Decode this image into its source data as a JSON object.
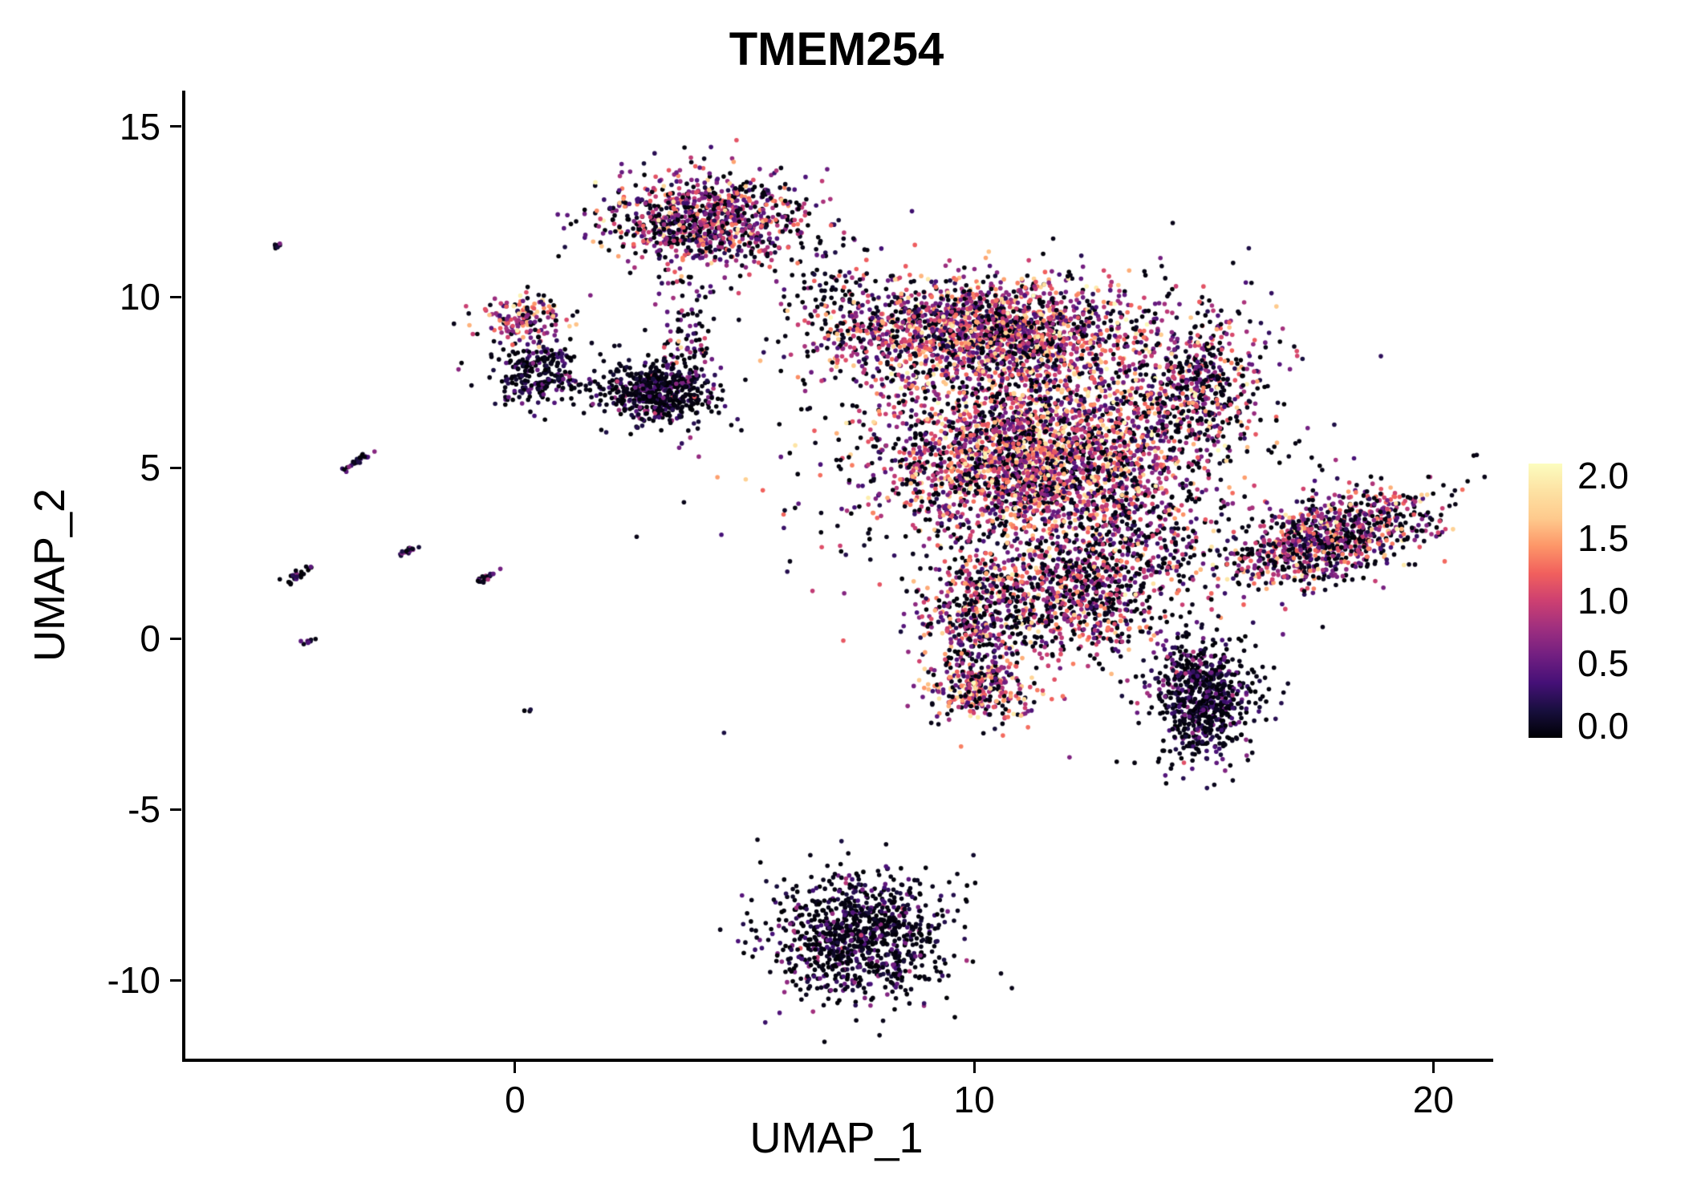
{
  "title": "TMEM254",
  "chart_data": {
    "type": "scatter",
    "title": "TMEM254",
    "xlabel": "UMAP_1",
    "ylabel": "UMAP_2",
    "xlim": [
      -7.2,
      21.2
    ],
    "ylim": [
      -12.3,
      16.0
    ],
    "x_ticks": [
      "0",
      "10",
      "20"
    ],
    "x_tick_values": [
      0,
      10,
      20
    ],
    "y_ticks": [
      "15",
      "10",
      "5",
      "0",
      "-5",
      "-10"
    ],
    "y_tick_values": [
      15,
      10,
      5,
      0,
      -5,
      -10
    ],
    "grid": false,
    "legend": {
      "position": "right",
      "ticks": [
        "2.0",
        "1.5",
        "1.0",
        "0.5",
        "0.0"
      ],
      "tick_values": [
        2.0,
        1.5,
        1.0,
        0.5,
        0.0
      ],
      "min": 0.0,
      "max": 2.0
    },
    "colormap": {
      "name": "magma",
      "stops": [
        "#000004",
        "#180f3e",
        "#451077",
        "#721f81",
        "#9f2f7f",
        "#cd4071",
        "#f1605d",
        "#fd9668",
        "#feca8d",
        "#fde2a3",
        "#fcfdbf"
      ]
    },
    "point_radius": 2.8,
    "seed": 7,
    "clusters": [
      {
        "name": "top",
        "cx": 4.15,
        "cy": 12.3,
        "sx": 1.05,
        "sy": 0.68,
        "angle": 0,
        "n": 950,
        "mean": 0.75,
        "vsd": 0.45,
        "p0": 0.28
      },
      {
        "name": "top-trail",
        "cx": 3.75,
        "cy": 8.2,
        "sx": 0.3,
        "sy": 1.3,
        "angle": 0,
        "n": 130,
        "mean": 0.55,
        "vsd": 0.4,
        "p0": 0.4
      },
      {
        "name": "bridge",
        "cx": 7.1,
        "cy": 10.1,
        "sx": 0.6,
        "sy": 0.9,
        "angle": 0,
        "n": 100,
        "mean": 0.45,
        "vsd": 0.4,
        "p0": 0.5
      },
      {
        "name": "left-orange",
        "cx": 0.2,
        "cy": 9.4,
        "sx": 0.5,
        "sy": 0.32,
        "angle": 0,
        "n": 160,
        "mean": 1.05,
        "vsd": 0.45,
        "p0": 0.2
      },
      {
        "name": "left-dark",
        "cx": 0.55,
        "cy": 7.8,
        "sx": 0.5,
        "sy": 0.5,
        "angle": 0,
        "n": 250,
        "mean": 0.3,
        "vsd": 0.3,
        "p0": 0.5
      },
      {
        "name": "mid-dark",
        "cx": 3.0,
        "cy": 7.2,
        "sx": 0.6,
        "sy": 0.45,
        "angle": 0,
        "n": 520,
        "mean": 0.28,
        "vsd": 0.3,
        "p0": 0.55
      },
      {
        "name": "main-upper",
        "cx": 10.3,
        "cy": 9.0,
        "sx": 1.7,
        "sy": 0.8,
        "angle": 0,
        "n": 1900,
        "mean": 0.9,
        "vsd": 0.5,
        "p0": 0.22
      },
      {
        "name": "main-core",
        "cx": 11.3,
        "cy": 5.3,
        "sx": 1.7,
        "sy": 1.3,
        "angle": 0,
        "n": 2700,
        "mean": 0.95,
        "vsd": 0.5,
        "p0": 0.2
      },
      {
        "name": "main-right",
        "cx": 14.8,
        "cy": 7.4,
        "sx": 0.8,
        "sy": 1.1,
        "angle": 0,
        "n": 550,
        "mean": 0.75,
        "vsd": 0.5,
        "p0": 0.3
      },
      {
        "name": "main-lower",
        "cx": 12.1,
        "cy": 1.2,
        "sx": 1.1,
        "sy": 0.9,
        "angle": 0,
        "n": 800,
        "mean": 0.75,
        "vsd": 0.5,
        "p0": 0.3
      },
      {
        "name": "left-arm",
        "cx": 10.0,
        "cy": 0.3,
        "sx": 0.55,
        "sy": 1.2,
        "angle": 0,
        "n": 450,
        "mean": 0.85,
        "vsd": 0.5,
        "p0": 0.25
      },
      {
        "name": "arm-tip",
        "cx": 10.2,
        "cy": -1.5,
        "sx": 0.6,
        "sy": 0.45,
        "angle": 0,
        "n": 250,
        "mean": 1.1,
        "vsd": 0.5,
        "p0": 0.2
      },
      {
        "name": "gap-sparse",
        "cx": 13.6,
        "cy": 3.0,
        "sx": 0.9,
        "sy": 1.0,
        "angle": 0,
        "n": 250,
        "mean": 0.6,
        "vsd": 0.45,
        "p0": 0.38
      },
      {
        "name": "dark-right",
        "cx": 15.0,
        "cy": -1.8,
        "sx": 0.55,
        "sy": 0.85,
        "angle": 0,
        "n": 750,
        "mean": 0.3,
        "vsd": 0.3,
        "p0": 0.5
      },
      {
        "name": "right-wing",
        "cx": 17.7,
        "cy": 2.9,
        "sx": 1.25,
        "sy": 0.55,
        "angle": 25,
        "n": 950,
        "mean": 0.75,
        "vsd": 0.5,
        "p0": 0.3
      },
      {
        "name": "bottom",
        "cx": 7.5,
        "cy": -8.7,
        "sx": 0.95,
        "sy": 0.9,
        "angle": 0,
        "n": 950,
        "mean": 0.25,
        "vsd": 0.3,
        "p0": 0.55
      },
      {
        "name": "edge-halo",
        "cx": 11.5,
        "cy": 5.0,
        "sx": 3.2,
        "sy": 2.7,
        "angle": 0,
        "n": 450,
        "mean": 0.35,
        "vsd": 0.35,
        "p0": 0.55
      },
      {
        "name": "streak-a",
        "cx": -5.2,
        "cy": 11.5,
        "sx": 0.09,
        "sy": 0.05,
        "angle": 40,
        "n": 9,
        "mean": 0.4,
        "vsd": 0.3,
        "p0": 0.4
      },
      {
        "name": "streak-b",
        "cx": -3.5,
        "cy": 5.15,
        "sx": 0.2,
        "sy": 0.05,
        "angle": 40,
        "n": 26,
        "mean": 0.35,
        "vsd": 0.3,
        "p0": 0.45
      },
      {
        "name": "streak-c",
        "cx": -2.3,
        "cy": 2.6,
        "sx": 0.16,
        "sy": 0.05,
        "angle": 40,
        "n": 22,
        "mean": 0.35,
        "vsd": 0.3,
        "p0": 0.45
      },
      {
        "name": "streak-d",
        "cx": -4.75,
        "cy": 1.85,
        "sx": 0.2,
        "sy": 0.06,
        "angle": 40,
        "n": 26,
        "mean": 0.35,
        "vsd": 0.3,
        "p0": 0.45
      },
      {
        "name": "streak-e",
        "cx": -0.65,
        "cy": 1.8,
        "sx": 0.16,
        "sy": 0.05,
        "angle": 40,
        "n": 20,
        "mean": 0.35,
        "vsd": 0.3,
        "p0": 0.45
      },
      {
        "name": "streak-f",
        "cx": -4.5,
        "cy": -0.1,
        "sx": 0.08,
        "sy": 0.05,
        "angle": 40,
        "n": 9,
        "mean": 0.3,
        "vsd": 0.25,
        "p0": 0.5
      },
      {
        "name": "dot-g",
        "cx": 0.25,
        "cy": -2.1,
        "sx": 0.05,
        "sy": 0.05,
        "angle": 0,
        "n": 3,
        "mean": 0.3,
        "vsd": 0.2,
        "p0": 0.5
      }
    ]
  }
}
